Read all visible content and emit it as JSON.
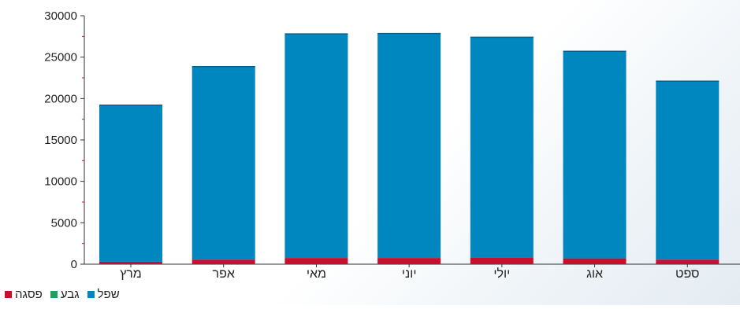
{
  "chart_data": {
    "type": "bar",
    "stacked": true,
    "categories": [
      "מרץ",
      "אפר",
      "מאי",
      "יוני",
      "יולי",
      "אוג",
      "ספט"
    ],
    "series": [
      {
        "name": "פסגה",
        "color": "#c8102e",
        "values": [
          300,
          550,
          750,
          750,
          800,
          700,
          550
        ]
      },
      {
        "name": "גבע",
        "color": "#1aa260",
        "values": [
          0,
          0,
          0,
          0,
          0,
          0,
          0
        ]
      },
      {
        "name": "שפל",
        "color": "#0087c0",
        "values": [
          18900,
          23300,
          27050,
          27100,
          26600,
          25000,
          21550
        ]
      }
    ],
    "ylim": [
      0,
      30000
    ],
    "yticks": [
      0,
      5000,
      10000,
      15000,
      20000,
      25000,
      30000
    ],
    "grid": false,
    "legend_position": "bottom-left"
  },
  "legend": [
    {
      "label": "פסגה",
      "color": "#c8102e",
      "icon": "red-square"
    },
    {
      "label": "גבע",
      "color": "#1aa260",
      "icon": "green-square"
    },
    {
      "label": "שפל",
      "color": "#0087c0",
      "icon": "blue-square"
    }
  ]
}
